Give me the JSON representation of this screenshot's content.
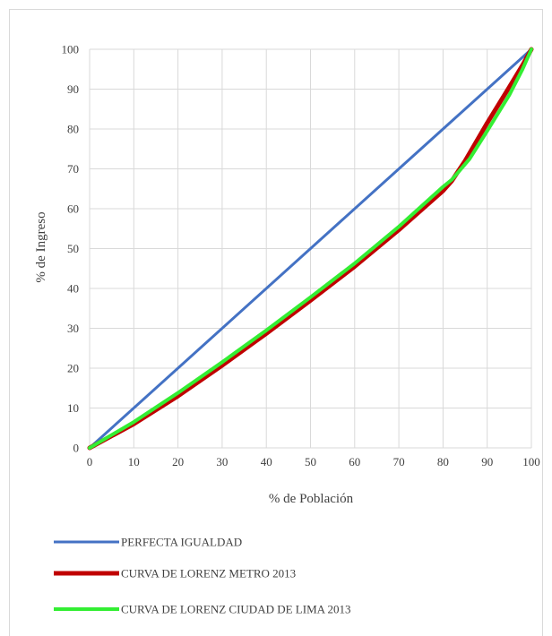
{
  "chart_data": {
    "type": "line",
    "title": "",
    "xlabel": "% de Población",
    "ylabel": "% de Ingreso",
    "xlim": [
      0,
      100
    ],
    "ylim": [
      0,
      100
    ],
    "xticks": [
      0,
      10,
      20,
      30,
      40,
      50,
      60,
      70,
      80,
      90,
      100
    ],
    "yticks": [
      0,
      10,
      20,
      30,
      40,
      50,
      60,
      70,
      80,
      90,
      100
    ],
    "grid": true,
    "legend": "bottom",
    "series": [
      {
        "name": "PERFECTA IGUALDAD",
        "color": "#4472c4",
        "points": [
          [
            0,
            0
          ],
          [
            100,
            100
          ]
        ]
      },
      {
        "name": "CURVA DE LORENZ METRO 2013",
        "color": "#c00000",
        "points": [
          [
            0,
            0
          ],
          [
            10,
            6
          ],
          [
            20,
            13
          ],
          [
            30,
            20.7
          ],
          [
            40,
            28.7
          ],
          [
            50,
            37
          ],
          [
            60,
            45.5
          ],
          [
            70,
            54.7
          ],
          [
            80,
            64.5
          ],
          [
            82,
            67
          ],
          [
            85,
            72
          ],
          [
            90,
            81.5
          ],
          [
            95,
            90.5
          ],
          [
            98,
            96
          ],
          [
            100,
            100
          ]
        ]
      },
      {
        "name": "CURVA DE LORENZ CIUDAD DE LIMA 2013",
        "color": "#33ee33",
        "points": [
          [
            0,
            0
          ],
          [
            10,
            6.5
          ],
          [
            20,
            13.8
          ],
          [
            30,
            21.5
          ],
          [
            40,
            29.5
          ],
          [
            50,
            37.8
          ],
          [
            60,
            46.3
          ],
          [
            70,
            55.5
          ],
          [
            80,
            65.5
          ],
          [
            82,
            67.3
          ],
          [
            86,
            72.5
          ],
          [
            90,
            79.5
          ],
          [
            95,
            88.5
          ],
          [
            98,
            95
          ],
          [
            100,
            100
          ]
        ]
      }
    ]
  }
}
